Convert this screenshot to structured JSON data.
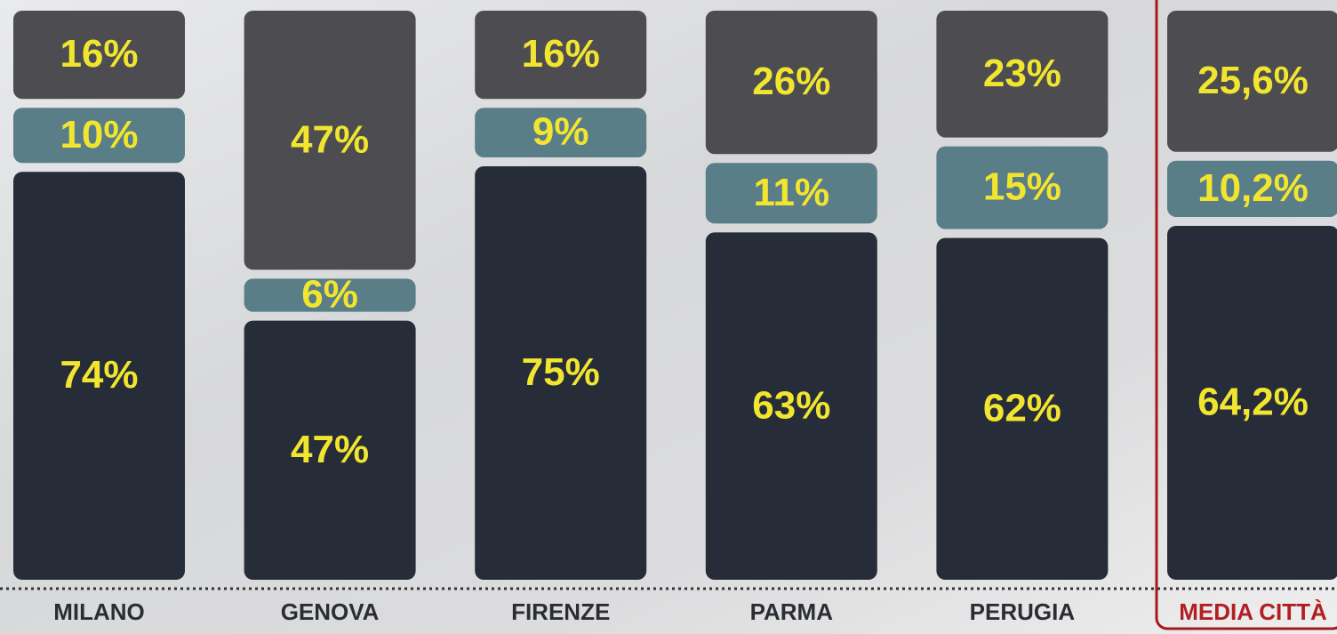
{
  "chart_data": {
    "type": "stacked_bar",
    "categories": [
      "MILANO",
      "GENOVA",
      "FIRENZE",
      "PARMA",
      "PERUGIA",
      "MEDIA CITTÀ"
    ],
    "series": [
      {
        "color": "#272d38",
        "values": [
          74,
          47,
          75,
          63,
          62,
          64.2
        ],
        "value_labels": [
          "74%",
          "47%",
          "75%",
          "63%",
          "62%",
          "64,2%"
        ]
      },
      {
        "color": "#5a7e87",
        "values": [
          10,
          6,
          9,
          11,
          15,
          10.2
        ],
        "value_labels": [
          "10%",
          "6%",
          "9%",
          "11%",
          "15%",
          "10,2%"
        ]
      },
      {
        "color": "#4d4d51",
        "values": [
          16,
          47,
          16,
          26,
          23,
          25.6
        ],
        "value_labels": [
          "16%",
          "47%",
          "16%",
          "26%",
          "23%",
          "25,6%"
        ]
      }
    ],
    "ylim": [
      0,
      100
    ]
  }
}
